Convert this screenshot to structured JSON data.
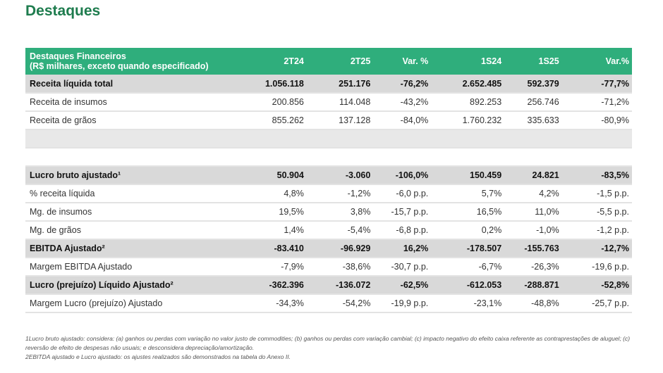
{
  "title": "Destaques",
  "table": {
    "header": [
      "Destaques Financeiros",
      "(R$ milhares, exceto quando especificado)",
      "2T24",
      "2T25",
      "Var. %",
      "1S24",
      "1S25",
      "Var.%"
    ],
    "rows": [
      {
        "label": "Receita líquida total",
        "v": [
          "1.056.118",
          "251.176",
          "-76,2%",
          "2.652.485",
          "592.379",
          "-77,7%"
        ],
        "hl": true
      },
      {
        "label": "Receita de insumos",
        "v": [
          "200.856",
          "114.048",
          "-43,2%",
          "892.253",
          "256.746",
          "-71,2%"
        ]
      },
      {
        "label": "Receita de grãos",
        "v": [
          "855.262",
          "137.128",
          "-84,0%",
          "1.760.232",
          "335.633",
          "-80,9%"
        ]
      },
      {
        "blank": 1
      },
      {
        "blank": 2
      },
      {
        "label": "Lucro bruto ajustado¹",
        "v": [
          "50.904",
          "-3.060",
          "-106,0%",
          "150.459",
          "24.821",
          "-83,5%"
        ],
        "hl": true
      },
      {
        "label": "% receita líquida",
        "v": [
          "4,8%",
          "-1,2%",
          "-6,0 p.p.",
          "5,7%",
          "4,2%",
          "-1,5 p.p."
        ]
      },
      {
        "label": "Mg. de insumos",
        "v": [
          "19,5%",
          "3,8%",
          "-15,7 p.p.",
          "16,5%",
          "11,0%",
          "-5,5 p.p."
        ]
      },
      {
        "label": "Mg. de grãos",
        "v": [
          "1,4%",
          "-5,4%",
          "-6,8 p.p.",
          "0,2%",
          "-1,0%",
          "-1,2 p.p."
        ]
      },
      {
        "label": "EBITDA Ajustado²",
        "v": [
          "-83.410",
          "-96.929",
          "16,2%",
          "-178.507",
          "-155.763",
          "-12,7%"
        ],
        "hl": true
      },
      {
        "label": "Margem EBITDA Ajustado",
        "v": [
          "-7,9%",
          "-38,6%",
          "-30,7 p.p.",
          "-6,7%",
          "-26,3%",
          "-19,6 p.p."
        ]
      },
      {
        "label": "Lucro (prejuízo) Líquido Ajustado²",
        "v": [
          "-362.396",
          "-136.072",
          "-62,5%",
          "-612.053",
          "-288.871",
          "-52,8%"
        ],
        "hl": true
      },
      {
        "label": "Margem Lucro (prejuízo) Ajustado",
        "v": [
          "-34,3%",
          "-54,2%",
          "-19,9 p.p.",
          "-23,1%",
          "-48,8%",
          "-25,7 p.p."
        ]
      }
    ]
  },
  "footnotes": [
    "1Lucro bruto ajustado: considera: (a) ganhos ou perdas com variação no valor justo de commodities; (b) ganhos ou perdas com variação cambial; (c) impacto negativo do efeito caixa referente as contraprestações de aluguel; (c) reversão de efeito de despesas não usuais; e desconsidera depreciação/amortização.",
    "2EBITDA ajustado e Lucro ajustado: os ajustes realizados são demonstrados na tabela do Anexo II."
  ]
}
